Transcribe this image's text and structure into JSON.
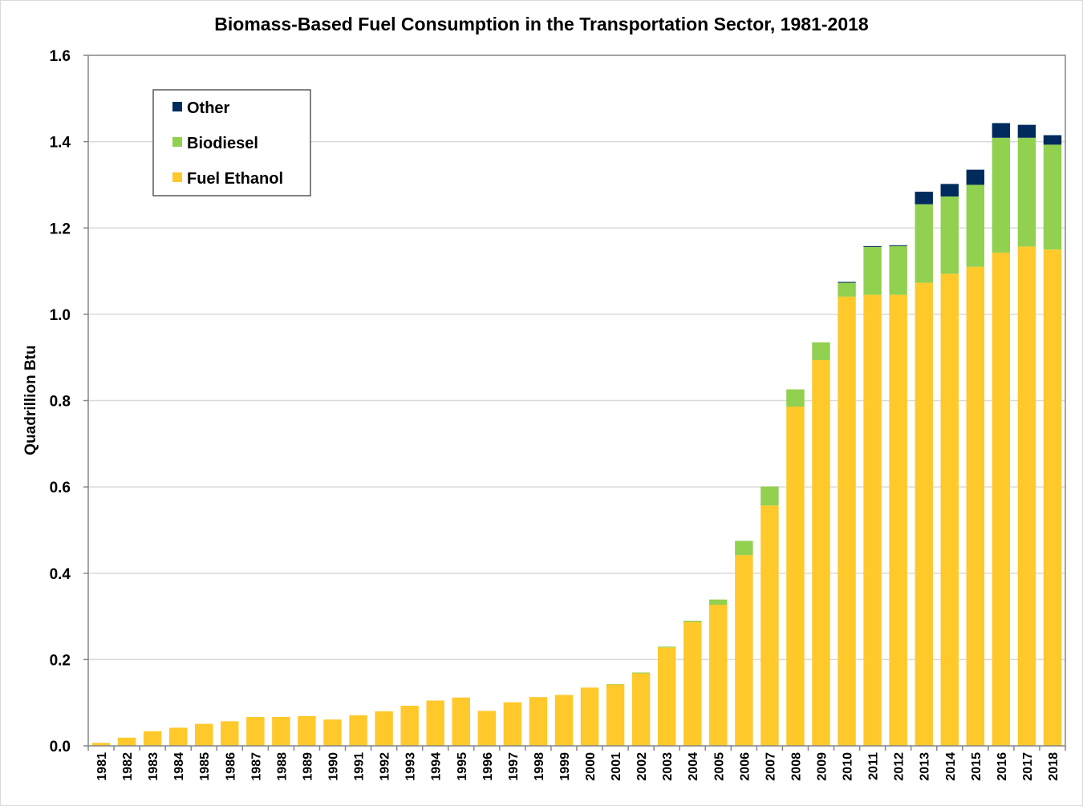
{
  "chart_data": {
    "type": "bar",
    "stacked": true,
    "title": "Biomass-Based Fuel Consumption in the Transportation Sector, 1981-2018",
    "xlabel": "",
    "ylabel": "Quadrillion Btu",
    "ylim": [
      0,
      1.6
    ],
    "yticks": [
      "0.0",
      "0.2",
      "0.4",
      "0.6",
      "0.8",
      "1.0",
      "1.2",
      "1.4",
      "1.6"
    ],
    "grid": true,
    "legend_position": "top-left",
    "categories": [
      "1981",
      "1982",
      "1983",
      "1984",
      "1985",
      "1986",
      "1987",
      "1988",
      "1989",
      "1990",
      "1991",
      "1992",
      "1993",
      "1994",
      "1995",
      "1996",
      "1997",
      "1998",
      "1999",
      "2000",
      "2001",
      "2002",
      "2003",
      "2004",
      "2005",
      "2006",
      "2007",
      "2008",
      "2009",
      "2010",
      "2011",
      "2012",
      "2013",
      "2014",
      "2015",
      "2016",
      "2017",
      "2018"
    ],
    "series": [
      {
        "name": "Fuel Ethanol",
        "color": "#ffc92b",
        "values": [
          0.007,
          0.019,
          0.034,
          0.042,
          0.051,
          0.057,
          0.067,
          0.067,
          0.069,
          0.061,
          0.071,
          0.08,
          0.093,
          0.105,
          0.112,
          0.081,
          0.101,
          0.113,
          0.118,
          0.135,
          0.142,
          0.168,
          0.228,
          0.287,
          0.327,
          0.442,
          0.557,
          0.786,
          0.894,
          1.041,
          1.045,
          1.045,
          1.073,
          1.094,
          1.11,
          1.143,
          1.157,
          1.15
        ]
      },
      {
        "name": "Biodiesel",
        "color": "#92d050",
        "values": [
          0,
          0,
          0,
          0,
          0,
          0,
          0,
          0,
          0,
          0,
          0,
          0,
          0,
          0,
          0,
          0,
          0,
          0,
          0,
          0,
          0.001,
          0.002,
          0.002,
          0.003,
          0.012,
          0.033,
          0.044,
          0.04,
          0.041,
          0.032,
          0.111,
          0.113,
          0.182,
          0.179,
          0.19,
          0.266,
          0.252,
          0.243
        ]
      },
      {
        "name": "Other",
        "color": "#002b5c",
        "values": [
          0,
          0,
          0,
          0,
          0,
          0,
          0,
          0,
          0,
          0,
          0,
          0,
          0,
          0,
          0,
          0,
          0,
          0,
          0,
          0,
          0,
          0,
          0,
          0,
          0,
          0,
          0,
          0,
          0,
          0.002,
          0.002,
          0.002,
          0.029,
          0.029,
          0.035,
          0.034,
          0.03,
          0.022
        ]
      }
    ]
  },
  "legend": {
    "items": [
      {
        "label": "Other",
        "color": "#002b5c"
      },
      {
        "label": "Biodiesel",
        "color": "#92d050"
      },
      {
        "label": "Fuel Ethanol",
        "color": "#ffc92b"
      }
    ]
  },
  "colors": {
    "gridline": "#d9d9d9",
    "axis": "#868686"
  }
}
